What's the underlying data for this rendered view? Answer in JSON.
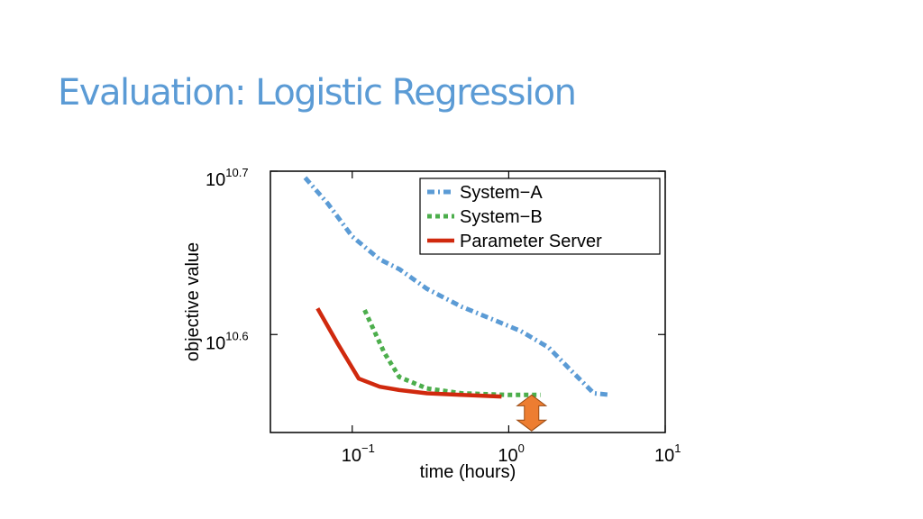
{
  "slide": {
    "title": "Evaluation: Logistic Regression"
  },
  "colors": {
    "system_a": "#5b9bd5",
    "system_b": "#4cae4c",
    "parameter_server": "#d0290e",
    "arrow": "#ed7d31"
  },
  "chart_data": {
    "type": "line",
    "xlabel": "time (hours)",
    "ylabel": "objective value",
    "x_scale": "log",
    "y_scale": "log",
    "xlim": [
      0.03,
      10
    ],
    "ylim": [
      10.54,
      10.7
    ],
    "x_ticks": [
      {
        "base": "10",
        "exp": "−1",
        "value": 0.1
      },
      {
        "base": "10",
        "exp": "0",
        "value": 1
      },
      {
        "base": "10",
        "exp": "1",
        "value": 10
      }
    ],
    "y_ticks": [
      {
        "base": "10",
        "exp": "10.6",
        "value": 10.6
      },
      {
        "base": "10",
        "exp": "10.7",
        "value": 10.7
      }
    ],
    "legend_position": "top-right",
    "series": [
      {
        "name": "System−A",
        "style": "dash-dot",
        "x": [
          0.05,
          0.07,
          0.1,
          0.15,
          0.2,
          0.3,
          0.5,
          0.8,
          1.2,
          1.8,
          2.5,
          3.5,
          4.5
        ],
        "y": [
          10.696,
          10.68,
          10.66,
          10.646,
          10.64,
          10.628,
          10.617,
          10.609,
          10.602,
          10.592,
          10.578,
          10.564,
          10.563
        ]
      },
      {
        "name": "System−B",
        "style": "dotted",
        "x": [
          0.12,
          0.16,
          0.2,
          0.3,
          0.5,
          1.0,
          1.6
        ],
        "y": [
          10.615,
          10.589,
          10.574,
          10.567,
          10.564,
          10.563,
          10.563
        ]
      },
      {
        "name": "Parameter Server",
        "style": "solid",
        "x": [
          0.06,
          0.08,
          0.11,
          0.15,
          0.2,
          0.3,
          0.5,
          0.9
        ],
        "y": [
          10.616,
          10.595,
          10.573,
          10.568,
          10.566,
          10.564,
          10.563,
          10.562
        ]
      }
    ],
    "annotation": {
      "type": "double-arrow",
      "x": 1.4,
      "y_range": [
        10.541,
        10.563
      ]
    }
  }
}
